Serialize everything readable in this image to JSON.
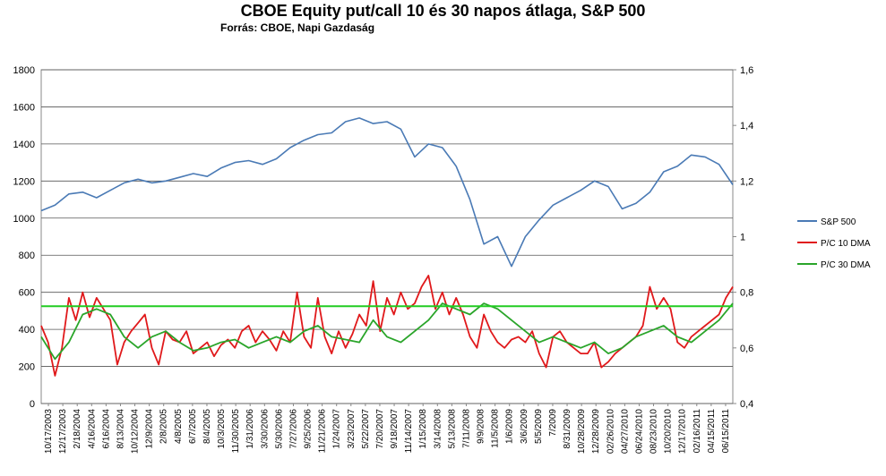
{
  "chart_data": {
    "type": "line",
    "title": "CBOE Equity put/call 10 és 30 napos átlaga, S&P 500",
    "subtitle": "Forrás: CBOE, Napi Gazdaság",
    "y_left": {
      "min": 0,
      "max": 1800,
      "step": 200,
      "ticks": [
        "0",
        "200",
        "400",
        "600",
        "800",
        "1000",
        "1200",
        "1400",
        "1600",
        "1800"
      ]
    },
    "y_right": {
      "min": 0.4,
      "max": 1.6,
      "step": 0.2,
      "ticks": [
        "0,4",
        "0,6",
        "0,8",
        "1",
        "1,2",
        "1,4",
        "1,6"
      ]
    },
    "grid": true,
    "legend_position": "right",
    "x_tick_labels": [
      "10/17/2003",
      "12/17/2003",
      "2/18/2004",
      "4/16/2004",
      "6/16/2004",
      "8/13/2004",
      "10/12/2004",
      "12/9/2004",
      "2/8/2005",
      "4/8/2005",
      "6/7/2005",
      "8/4/2005",
      "10/3/2005",
      "11/30/2005",
      "1/31/2006",
      "3/30/2006",
      "5/30/2006",
      "7/27/2006",
      "9/25/2006",
      "11/21/2006",
      "1/24/2007",
      "3/23/2007",
      "5/22/2007",
      "7/20/2007",
      "9/18/2007",
      "11/14/2007",
      "1/15/2008",
      "3/14/2008",
      "5/13/2008",
      "7/11/2008",
      "9/9/2008",
      "11/5/2008",
      "1/6/2009",
      "3/6/2009",
      "5/5/2009",
      "7/2009",
      "8/31/2009",
      "10/28/2009",
      "12/28/2009",
      "02/26/2010",
      "04/27/2010",
      "06/24/2010",
      "08/23/2010",
      "10/20/2010",
      "12/17/2010",
      "02/16/2011",
      "04/15/2011",
      "06/15/2011"
    ],
    "series": [
      {
        "name": "S&P 500",
        "color": "#4a7ab5",
        "axis": "left",
        "x": [
          0,
          2,
          4,
          6,
          8,
          10,
          12,
          14,
          16,
          18,
          20,
          22,
          24,
          26,
          28,
          30,
          32,
          34,
          36,
          38,
          40,
          42,
          44,
          46,
          48,
          50,
          52,
          54,
          56,
          58,
          60,
          62,
          64,
          66,
          68,
          70,
          72,
          74,
          76,
          78,
          80,
          82,
          84,
          86,
          88,
          90,
          92,
          94,
          96,
          98,
          100
        ],
        "values": [
          1040,
          1070,
          1130,
          1140,
          1110,
          1150,
          1190,
          1210,
          1190,
          1200,
          1220,
          1240,
          1225,
          1270,
          1300,
          1310,
          1290,
          1320,
          1380,
          1420,
          1450,
          1460,
          1520,
          1540,
          1510,
          1520,
          1480,
          1330,
          1400,
          1380,
          1280,
          1100,
          860,
          900,
          740,
          900,
          990,
          1070,
          1110,
          1150,
          1200,
          1170,
          1050,
          1080,
          1140,
          1250,
          1280,
          1340,
          1330,
          1290,
          1180
        ]
      },
      {
        "name": "P/C 10 DMA",
        "color": "#e0191b",
        "axis": "right",
        "x": [
          0,
          1,
          2,
          3,
          4,
          5,
          6,
          7,
          8,
          9,
          10,
          11,
          12,
          13,
          14,
          15,
          16,
          17,
          18,
          19,
          20,
          21,
          22,
          23,
          24,
          25,
          26,
          27,
          28,
          29,
          30,
          31,
          32,
          33,
          34,
          35,
          36,
          37,
          38,
          39,
          40,
          41,
          42,
          43,
          44,
          45,
          46,
          47,
          48,
          49,
          50,
          51,
          52,
          53,
          54,
          55,
          56,
          57,
          58,
          59,
          60,
          61,
          62,
          63,
          64,
          65,
          66,
          67,
          68,
          69,
          70,
          71,
          72,
          73,
          74,
          75,
          76,
          77,
          78,
          79,
          80,
          81,
          82,
          83,
          84,
          85,
          86,
          87,
          88,
          89,
          90,
          91,
          92,
          93,
          94,
          95,
          96,
          97,
          98,
          99,
          100
        ],
        "values": [
          0.68,
          0.62,
          0.5,
          0.6,
          0.78,
          0.7,
          0.8,
          0.71,
          0.78,
          0.74,
          0.7,
          0.54,
          0.62,
          0.66,
          0.69,
          0.72,
          0.6,
          0.54,
          0.66,
          0.63,
          0.62,
          0.66,
          0.58,
          0.6,
          0.62,
          0.57,
          0.61,
          0.63,
          0.6,
          0.66,
          0.68,
          0.62,
          0.66,
          0.63,
          0.59,
          0.66,
          0.62,
          0.8,
          0.64,
          0.6,
          0.78,
          0.64,
          0.58,
          0.66,
          0.6,
          0.65,
          0.72,
          0.68,
          0.84,
          0.66,
          0.78,
          0.72,
          0.8,
          0.74,
          0.76,
          0.82,
          0.86,
          0.74,
          0.8,
          0.72,
          0.78,
          0.72,
          0.64,
          0.6,
          0.72,
          0.66,
          0.62,
          0.6,
          0.63,
          0.64,
          0.62,
          0.66,
          0.58,
          0.53,
          0.64,
          0.66,
          0.62,
          0.6,
          0.58,
          0.58,
          0.62,
          0.53,
          0.55,
          0.58,
          0.6,
          0.62,
          0.64,
          0.68,
          0.82,
          0.74,
          0.78,
          0.74,
          0.62,
          0.6,
          0.64,
          0.66,
          0.68,
          0.7,
          0.72,
          0.78,
          0.82
        ]
      },
      {
        "name": "P/C 30 DMA",
        "color": "#2aa52a",
        "axis": "right",
        "x": [
          0,
          2,
          4,
          6,
          8,
          10,
          12,
          14,
          16,
          18,
          20,
          22,
          24,
          26,
          28,
          30,
          32,
          34,
          36,
          38,
          40,
          42,
          44,
          46,
          48,
          50,
          52,
          54,
          56,
          58,
          60,
          62,
          64,
          66,
          68,
          70,
          72,
          74,
          76,
          78,
          80,
          82,
          84,
          86,
          88,
          90,
          92,
          94,
          96,
          98,
          100
        ],
        "values": [
          0.64,
          0.56,
          0.62,
          0.72,
          0.74,
          0.72,
          0.64,
          0.6,
          0.64,
          0.66,
          0.62,
          0.59,
          0.6,
          0.62,
          0.63,
          0.6,
          0.62,
          0.64,
          0.62,
          0.66,
          0.68,
          0.64,
          0.63,
          0.62,
          0.7,
          0.64,
          0.62,
          0.66,
          0.7,
          0.76,
          0.74,
          0.72,
          0.76,
          0.74,
          0.7,
          0.66,
          0.62,
          0.64,
          0.62,
          0.6,
          0.62,
          0.58,
          0.6,
          0.64,
          0.66,
          0.68,
          0.64,
          0.62,
          0.66,
          0.7,
          0.76
        ]
      },
      {
        "name": "",
        "color": "#22cc22",
        "axis": "right",
        "x": [
          0,
          100
        ],
        "values": [
          0.75,
          0.75
        ]
      }
    ]
  }
}
